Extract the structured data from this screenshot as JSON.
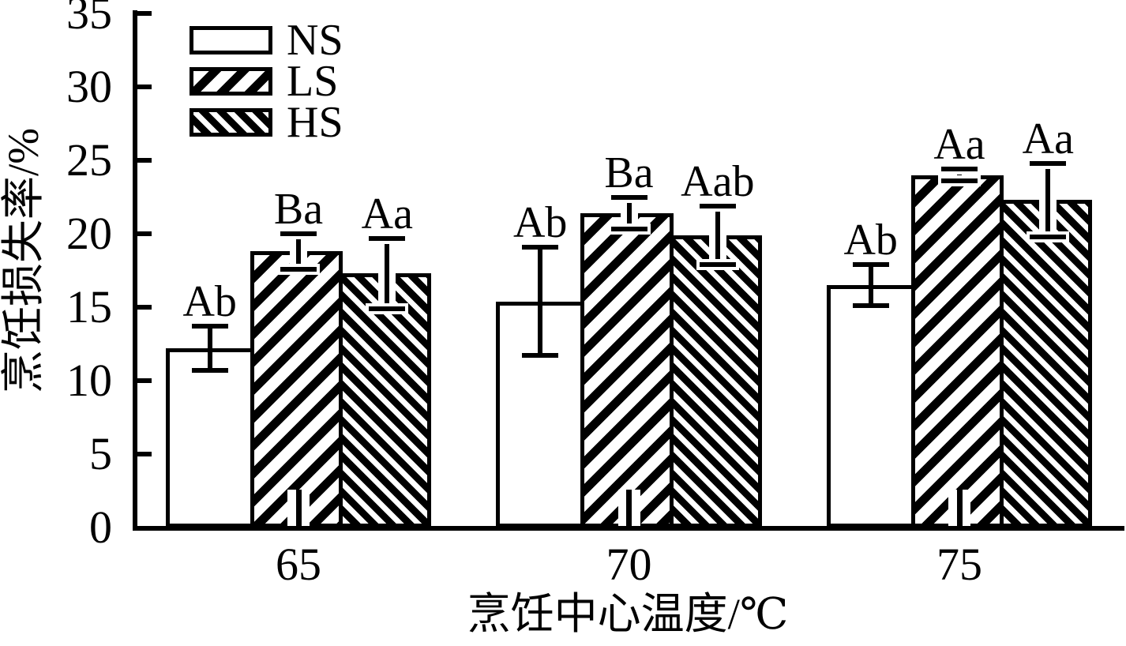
{
  "chart_data": {
    "type": "bar",
    "title": "",
    "ylabel": "烹饪损失率/%",
    "xlabel": "烹饪中心温度/℃",
    "categories": [
      "65",
      "70",
      "75"
    ],
    "ylim": [
      0,
      35
    ],
    "yticks": [
      0,
      5,
      10,
      15,
      20,
      25,
      30,
      35
    ],
    "grid": false,
    "legend_position": "top-left-inside",
    "outline_color": "#000000",
    "background_color": "#ffffff",
    "series": [
      {
        "name": "NS",
        "hatch": "none",
        "values": [
          12.2,
          15.4,
          16.5
        ],
        "errors": [
          1.5,
          3.7,
          1.4
        ],
        "sig_labels": [
          "Ab",
          "Ab",
          "Ab"
        ]
      },
      {
        "name": "LS",
        "hatch": "forward-diagonal",
        "values": [
          18.8,
          21.4,
          24.0
        ],
        "errors": [
          1.2,
          1.1,
          0.4
        ],
        "sig_labels": [
          "Ba",
          "Ba",
          "Aa"
        ]
      },
      {
        "name": "HS",
        "hatch": "backward-diagonal",
        "values": [
          17.3,
          19.9,
          22.3
        ],
        "errors": [
          2.4,
          2.0,
          2.5
        ],
        "sig_labels": [
          "Aa",
          "Aab",
          "Aa"
        ]
      }
    ]
  }
}
